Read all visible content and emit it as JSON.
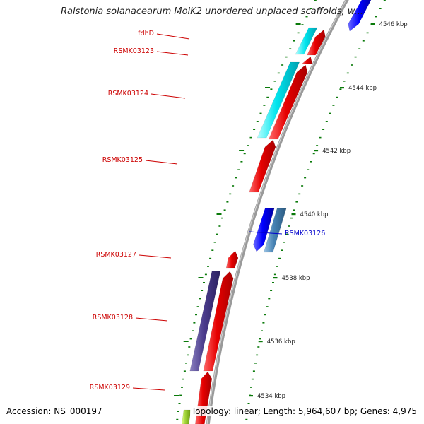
{
  "title": "Ralstonia solanacearum MolK2 unordered unplaced scaffolds, w...",
  "footer": {
    "accession": "Accession: NS_000197",
    "summary": "Topology: linear; Length: 5,964,607 bp; Genes: 4,975"
  },
  "colors": {
    "backbone": "#8f8f8f",
    "forward_gene": "#e60000",
    "reverse_gene": "#0000ff",
    "cyan_feature": "#00e5ee",
    "steelblue_feature": "#4682b4",
    "purple_feature": "#4b3c8c",
    "lime_feature": "#9acd32",
    "tick": "#0a7a0a",
    "forward_label": "#cc0000",
    "reverse_label": "#0000cc",
    "scale_label": "#222222"
  },
  "scale_ticks": [
    {
      "label": "4546 kbp",
      "kbp": 4546
    },
    {
      "label": "4544 kbp",
      "kbp": 4544
    },
    {
      "label": "4542 kbp",
      "kbp": 4542
    },
    {
      "label": "4540 kbp",
      "kbp": 4540
    },
    {
      "label": "4538 kbp",
      "kbp": 4538
    },
    {
      "label": "4536 kbp",
      "kbp": 4536
    },
    {
      "label": "4534 kbp",
      "kbp": 4534
    }
  ],
  "gene_labels": [
    {
      "text": "fdhD",
      "strand": "forward"
    },
    {
      "text": "RSMK03123",
      "strand": "forward"
    },
    {
      "text": "RSMK03124",
      "strand": "forward"
    },
    {
      "text": "RSMK03125",
      "strand": "forward"
    },
    {
      "text": "RSMK03126",
      "strand": "reverse"
    },
    {
      "text": "RSMK03127",
      "strand": "forward"
    },
    {
      "text": "RSMK03128",
      "strand": "forward"
    },
    {
      "text": "RSMK03129",
      "strand": "forward"
    }
  ]
}
